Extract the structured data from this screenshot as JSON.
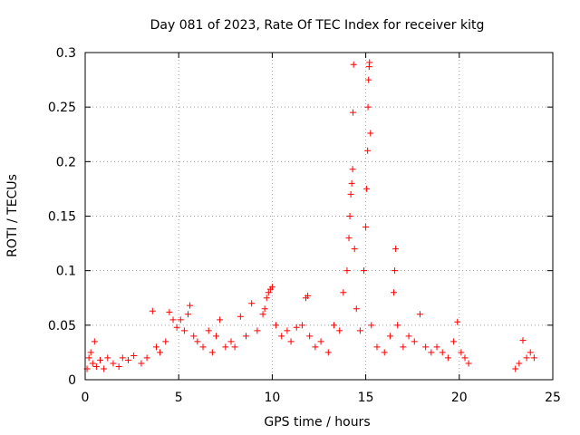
{
  "chart_data": {
    "type": "scatter",
    "title": "Day 081 of 2023, Rate Of TEC Index for receiver kitg",
    "xlabel": "GPS time / hours",
    "ylabel": "ROTI / TECUs",
    "xlim": [
      0,
      25
    ],
    "ylim": [
      0,
      0.3
    ],
    "xticks": [
      0,
      5,
      10,
      15,
      20,
      25
    ],
    "yticks": [
      0,
      0.05,
      0.1,
      0.15,
      0.2,
      0.25,
      0.3
    ],
    "xtick_labels": [
      "0",
      "5",
      "10",
      "15",
      "20",
      "25"
    ],
    "ytick_labels": [
      "0",
      "0.05",
      "0.1",
      "0.15",
      "0.2",
      "0.25",
      "0.3"
    ],
    "grid": true,
    "marker": "+",
    "color": "#ff0000",
    "series": [
      {
        "name": "ROTI",
        "points": [
          [
            0.1,
            0.01
          ],
          [
            0.2,
            0.02
          ],
          [
            0.3,
            0.025
          ],
          [
            0.4,
            0.015
          ],
          [
            0.5,
            0.035
          ],
          [
            0.6,
            0.012
          ],
          [
            0.8,
            0.018
          ],
          [
            1.0,
            0.01
          ],
          [
            1.2,
            0.02
          ],
          [
            1.5,
            0.015
          ],
          [
            1.8,
            0.012
          ],
          [
            2.0,
            0.02
          ],
          [
            2.3,
            0.018
          ],
          [
            2.6,
            0.022
          ],
          [
            3.0,
            0.015
          ],
          [
            3.3,
            0.02
          ],
          [
            3.6,
            0.063
          ],
          [
            3.8,
            0.03
          ],
          [
            4.0,
            0.025
          ],
          [
            4.3,
            0.035
          ],
          [
            4.5,
            0.062
          ],
          [
            4.7,
            0.055
          ],
          [
            4.9,
            0.048
          ],
          [
            5.1,
            0.055
          ],
          [
            5.3,
            0.045
          ],
          [
            5.5,
            0.06
          ],
          [
            5.6,
            0.068
          ],
          [
            5.8,
            0.04
          ],
          [
            6.0,
            0.035
          ],
          [
            6.3,
            0.03
          ],
          [
            6.6,
            0.045
          ],
          [
            6.8,
            0.025
          ],
          [
            7.0,
            0.04
          ],
          [
            7.2,
            0.055
          ],
          [
            7.5,
            0.03
          ],
          [
            7.8,
            0.035
          ],
          [
            8.0,
            0.03
          ],
          [
            8.3,
            0.058
          ],
          [
            8.6,
            0.04
          ],
          [
            8.9,
            0.07
          ],
          [
            9.2,
            0.045
          ],
          [
            9.5,
            0.06
          ],
          [
            9.6,
            0.065
          ],
          [
            9.7,
            0.075
          ],
          [
            9.8,
            0.08
          ],
          [
            9.9,
            0.083
          ],
          [
            10.0,
            0.085
          ],
          [
            10.2,
            0.05
          ],
          [
            10.5,
            0.04
          ],
          [
            10.8,
            0.045
          ],
          [
            11.0,
            0.035
          ],
          [
            11.3,
            0.048
          ],
          [
            11.6,
            0.05
          ],
          [
            11.8,
            0.075
          ],
          [
            11.9,
            0.077
          ],
          [
            12.0,
            0.04
          ],
          [
            12.3,
            0.03
          ],
          [
            12.6,
            0.035
          ],
          [
            13.0,
            0.025
          ],
          [
            13.3,
            0.05
          ],
          [
            13.6,
            0.045
          ],
          [
            13.8,
            0.08
          ],
          [
            14.0,
            0.1
          ],
          [
            14.1,
            0.13
          ],
          [
            14.15,
            0.15
          ],
          [
            14.2,
            0.17
          ],
          [
            14.25,
            0.18
          ],
          [
            14.3,
            0.193
          ],
          [
            14.32,
            0.245
          ],
          [
            14.35,
            0.289
          ],
          [
            14.4,
            0.12
          ],
          [
            14.5,
            0.065
          ],
          [
            14.7,
            0.045
          ],
          [
            14.9,
            0.1
          ],
          [
            15.0,
            0.14
          ],
          [
            15.05,
            0.175
          ],
          [
            15.1,
            0.21
          ],
          [
            15.12,
            0.25
          ],
          [
            15.15,
            0.275
          ],
          [
            15.18,
            0.287
          ],
          [
            15.2,
            0.291
          ],
          [
            15.25,
            0.226
          ],
          [
            15.3,
            0.05
          ],
          [
            15.6,
            0.03
          ],
          [
            16.0,
            0.025
          ],
          [
            16.3,
            0.04
          ],
          [
            16.5,
            0.08
          ],
          [
            16.55,
            0.1
          ],
          [
            16.6,
            0.12
          ],
          [
            16.7,
            0.05
          ],
          [
            17.0,
            0.03
          ],
          [
            17.3,
            0.04
          ],
          [
            17.6,
            0.035
          ],
          [
            17.9,
            0.06
          ],
          [
            18.2,
            0.03
          ],
          [
            18.5,
            0.025
          ],
          [
            18.8,
            0.03
          ],
          [
            19.1,
            0.025
          ],
          [
            19.4,
            0.02
          ],
          [
            19.7,
            0.035
          ],
          [
            19.9,
            0.053
          ],
          [
            20.1,
            0.025
          ],
          [
            20.3,
            0.02
          ],
          [
            20.5,
            0.015
          ],
          [
            23.0,
            0.01
          ],
          [
            23.2,
            0.015
          ],
          [
            23.4,
            0.036
          ],
          [
            23.6,
            0.02
          ],
          [
            23.8,
            0.025
          ],
          [
            24.0,
            0.02
          ]
        ]
      }
    ]
  }
}
